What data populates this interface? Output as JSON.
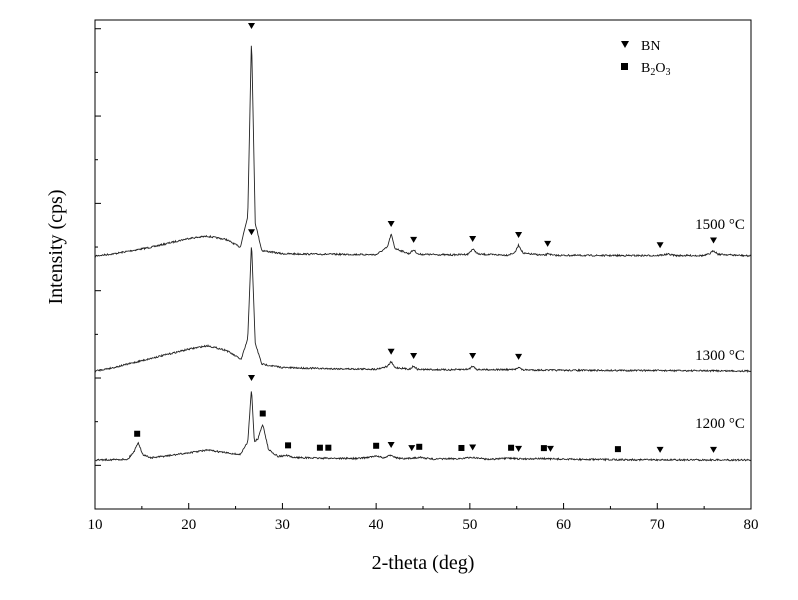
{
  "chart_data": {
    "type": "line",
    "title": "",
    "xlabel": "2-theta (deg)",
    "ylabel": "Intensity (cps)",
    "xlim": [
      10,
      80
    ],
    "xticks": [
      10,
      20,
      30,
      40,
      50,
      60,
      70,
      80
    ],
    "yticks_labeled": false,
    "grid": false,
    "legend": {
      "placement": "top-right",
      "entries": [
        {
          "marker": "triangle-down",
          "label": "BN",
          "phase": "BN"
        },
        {
          "marker": "square",
          "label_main": "B",
          "sub1": "2",
          "label_mid": "O",
          "sub2": "3",
          "phase": "B2O3"
        }
      ]
    },
    "series": [
      {
        "name": "1500 °C",
        "x": [
          10,
          12,
          14,
          16,
          18,
          20,
          22,
          24,
          25.5,
          26.3,
          26.7,
          27.1,
          27.8,
          30,
          35,
          40,
          41.2,
          41.6,
          42.0,
          43.5,
          44.0,
          44.5,
          48,
          49.8,
          50.3,
          50.9,
          54,
          54.8,
          55.2,
          55.7,
          58,
          58.4,
          58.8,
          65,
          70,
          71.2,
          72,
          75,
          75.6,
          76.0,
          76.5,
          80
        ],
        "y": [
          0.0,
          0.01,
          0.025,
          0.04,
          0.06,
          0.08,
          0.09,
          0.075,
          0.04,
          0.18,
          1.0,
          0.15,
          0.025,
          0.01,
          0.008,
          0.006,
          0.04,
          0.1,
          0.035,
          0.01,
          0.028,
          0.008,
          0.005,
          0.008,
          0.032,
          0.008,
          0.004,
          0.015,
          0.05,
          0.012,
          0.003,
          0.012,
          0.003,
          0.002,
          0.002,
          0.008,
          0.002,
          0.002,
          0.01,
          0.025,
          0.008,
          0.0
        ],
        "peaks": [
          {
            "x": 26.7,
            "phase": "BN"
          },
          {
            "x": 41.6,
            "phase": "BN"
          },
          {
            "x": 44.0,
            "phase": "BN"
          },
          {
            "x": 50.3,
            "phase": "BN"
          },
          {
            "x": 55.2,
            "phase": "BN"
          },
          {
            "x": 58.3,
            "phase": "BN"
          },
          {
            "x": 70.3,
            "phase": "BN"
          },
          {
            "x": 76.0,
            "phase": "BN"
          }
        ]
      },
      {
        "name": "1300 °C",
        "x": [
          10,
          12,
          14,
          16,
          18,
          20,
          22,
          24,
          25.6,
          26.3,
          26.7,
          27.1,
          27.8,
          30,
          35,
          40,
          41.2,
          41.6,
          42.0,
          43.6,
          44.0,
          44.4,
          48,
          49.9,
          50.3,
          50.8,
          54.8,
          55.2,
          55.6,
          60,
          70,
          80
        ],
        "y": [
          0.0,
          0.015,
          0.035,
          0.055,
          0.075,
          0.095,
          0.11,
          0.09,
          0.05,
          0.14,
          0.56,
          0.12,
          0.03,
          0.015,
          0.01,
          0.008,
          0.02,
          0.04,
          0.015,
          0.008,
          0.022,
          0.007,
          0.005,
          0.008,
          0.022,
          0.006,
          0.006,
          0.018,
          0.005,
          0.003,
          0.002,
          0.0
        ],
        "peaks": [
          {
            "x": 26.7,
            "phase": "BN"
          },
          {
            "x": 41.6,
            "phase": "BN"
          },
          {
            "x": 44.0,
            "phase": "BN"
          },
          {
            "x": 50.3,
            "phase": "BN"
          },
          {
            "x": 55.2,
            "phase": "BN"
          }
        ]
      },
      {
        "name": "1200 °C",
        "x": [
          10,
          13.5,
          14.2,
          14.6,
          15.1,
          16,
          18,
          20,
          22,
          24,
          25.5,
          26.3,
          26.7,
          27.0,
          27.4,
          27.9,
          28.5,
          29.5,
          30.5,
          31,
          34,
          35,
          38,
          40.2,
          40.8,
          41.6,
          42.2,
          43,
          44.6,
          46,
          49,
          50.3,
          52,
          54.5,
          55.1,
          57.8,
          58.5,
          62,
          66,
          70,
          80
        ],
        "y": [
          0.0,
          0.004,
          0.05,
          0.1,
          0.03,
          0.012,
          0.025,
          0.04,
          0.055,
          0.04,
          0.03,
          0.1,
          0.4,
          0.1,
          0.12,
          0.2,
          0.06,
          0.02,
          0.025,
          0.015,
          0.01,
          0.01,
          0.008,
          0.022,
          0.01,
          0.028,
          0.012,
          0.006,
          0.015,
          0.005,
          0.008,
          0.014,
          0.004,
          0.01,
          0.006,
          0.008,
          0.006,
          0.003,
          0.002,
          0.001,
          0.0
        ],
        "peaks": [
          {
            "x": 14.5,
            "phase": "B2O3"
          },
          {
            "x": 26.7,
            "phase": "BN"
          },
          {
            "x": 27.9,
            "phase": "B2O3"
          },
          {
            "x": 30.6,
            "phase": "B2O3"
          },
          {
            "x": 34.0,
            "phase": "B2O3"
          },
          {
            "x": 34.9,
            "phase": "B2O3"
          },
          {
            "x": 40.0,
            "phase": "B2O3"
          },
          {
            "x": 41.6,
            "phase": "BN"
          },
          {
            "x": 43.8,
            "phase": "BN"
          },
          {
            "x": 44.6,
            "phase": "B2O3"
          },
          {
            "x": 49.1,
            "phase": "B2O3"
          },
          {
            "x": 50.3,
            "phase": "BN"
          },
          {
            "x": 54.4,
            "phase": "B2O3"
          },
          {
            "x": 55.2,
            "phase": "BN"
          },
          {
            "x": 57.9,
            "phase": "B2O3"
          },
          {
            "x": 58.6,
            "phase": "BN"
          },
          {
            "x": 65.8,
            "phase": "B2O3"
          },
          {
            "x": 70.3,
            "phase": "BN"
          },
          {
            "x": 76.0,
            "phase": "BN"
          }
        ]
      }
    ]
  }
}
